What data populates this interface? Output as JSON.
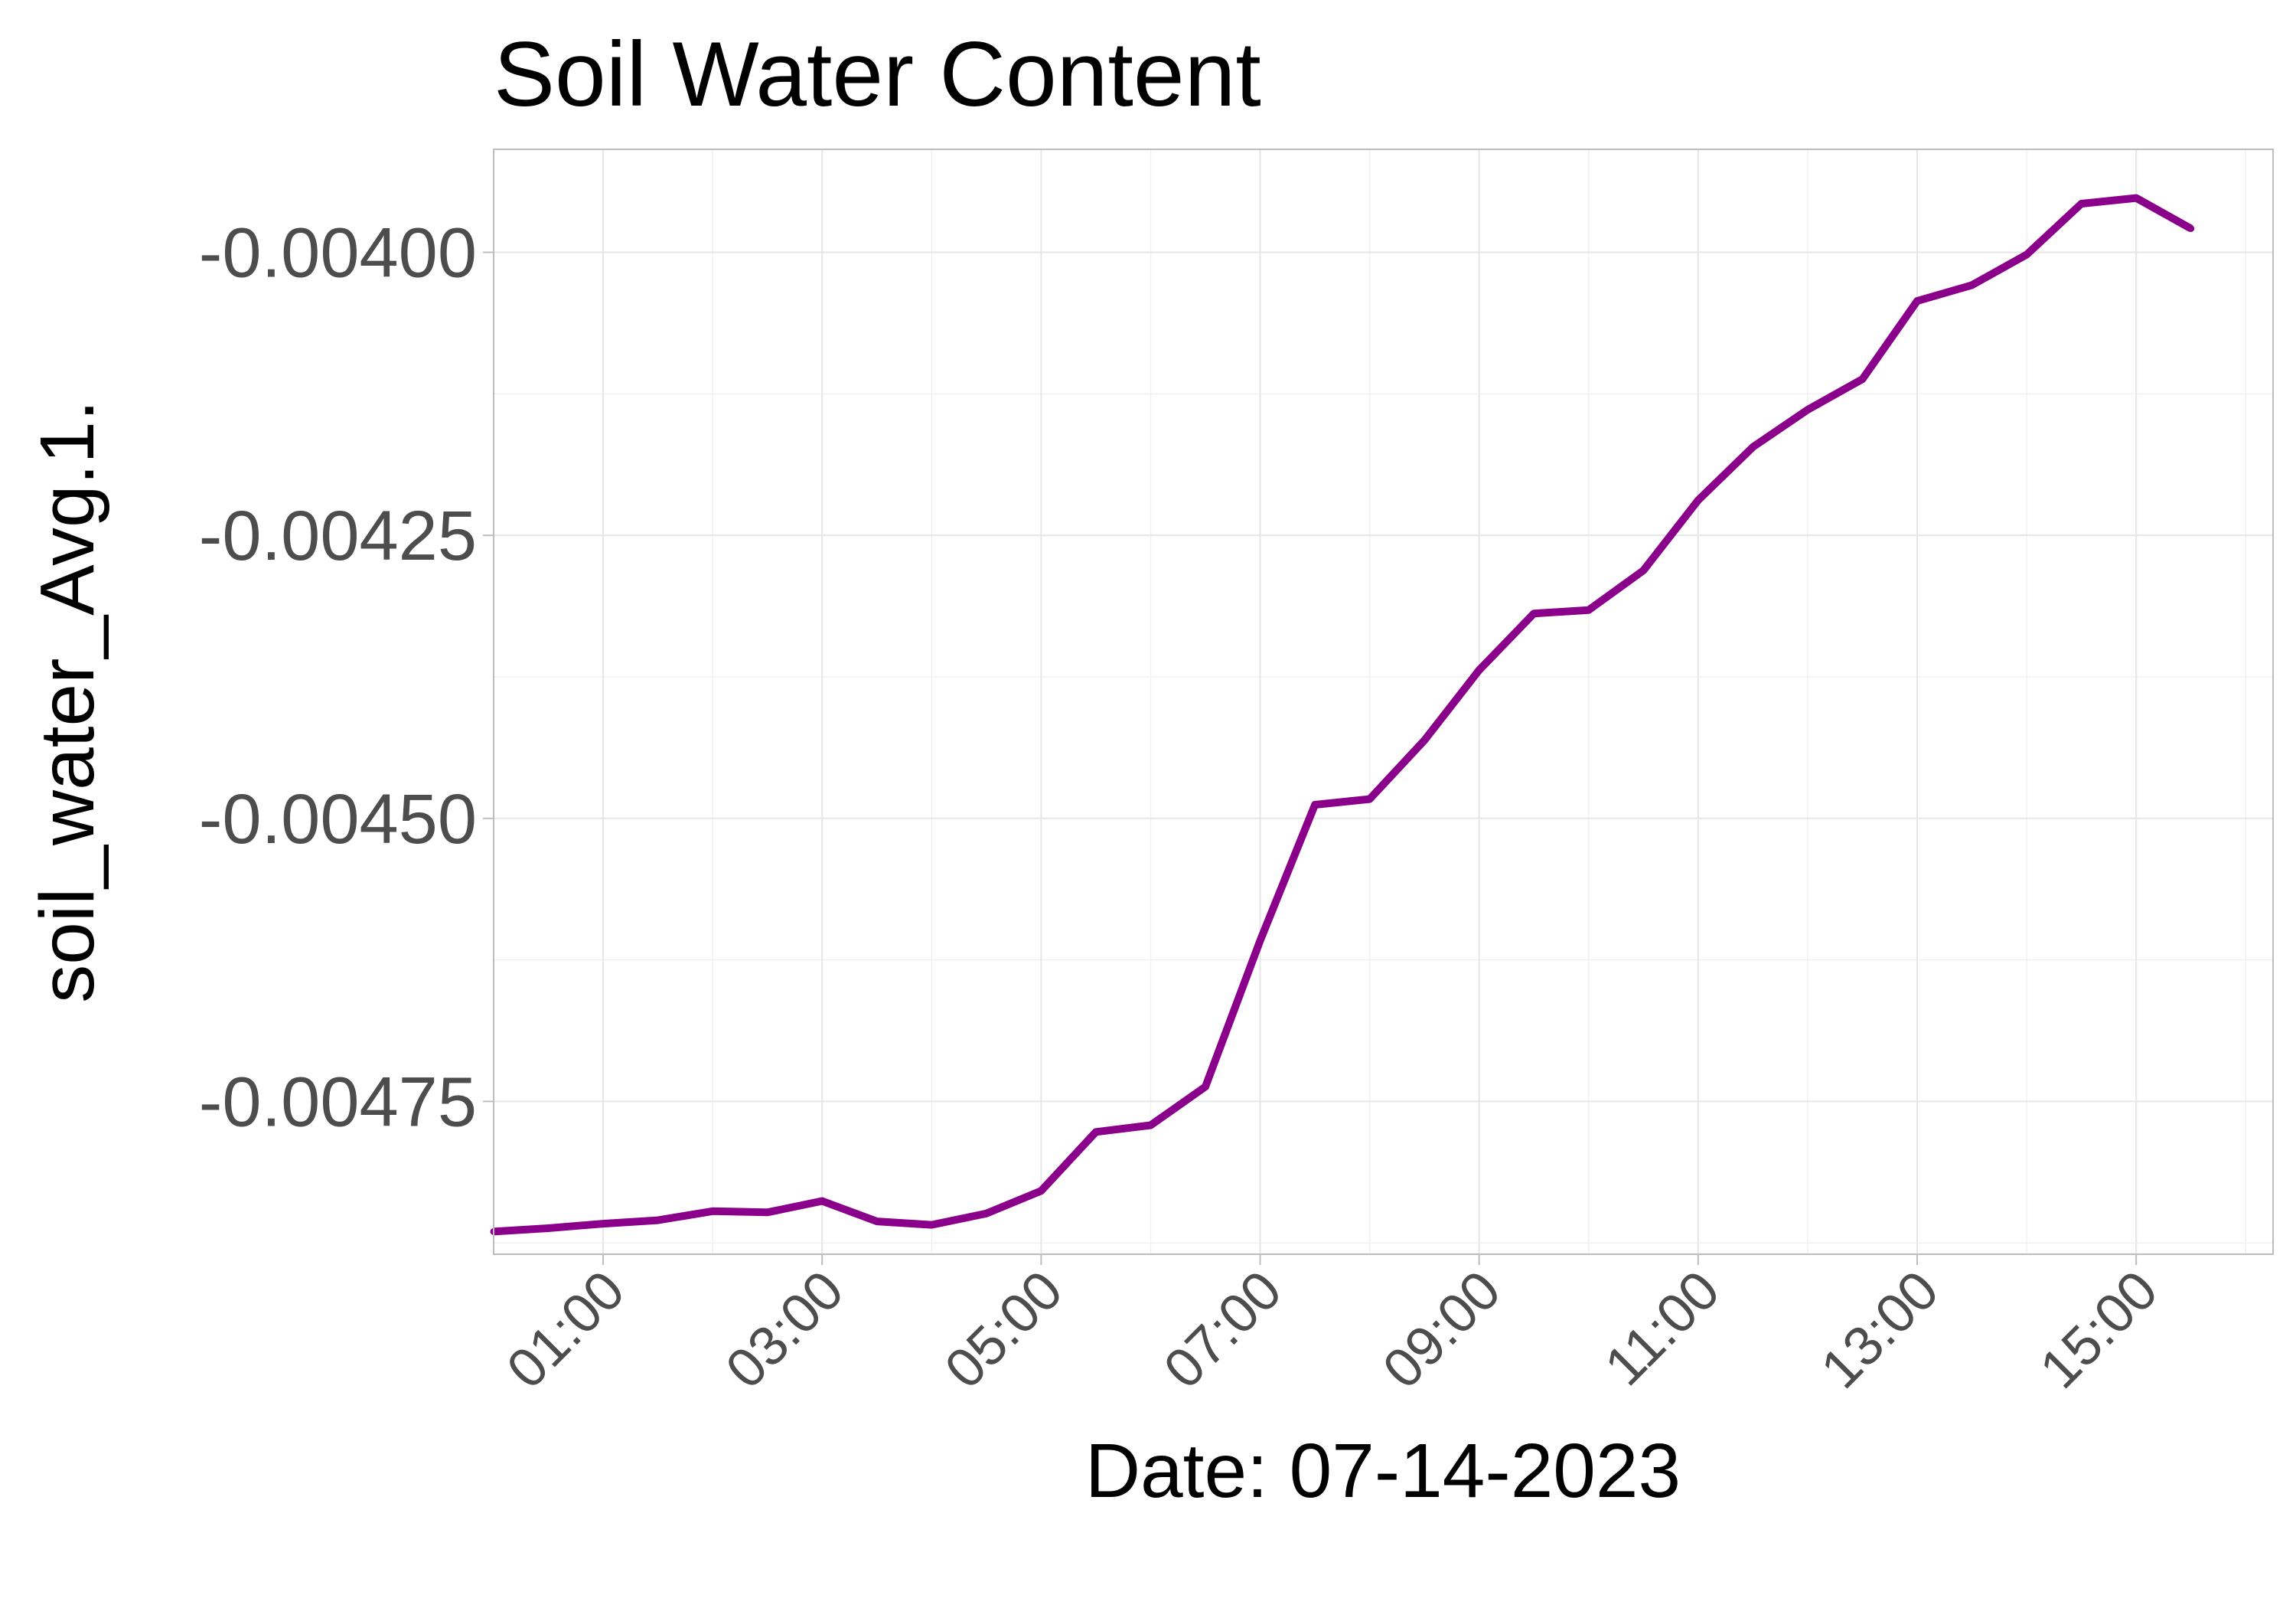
{
  "chart_data": {
    "type": "line",
    "title": "Soil Water Content",
    "xlabel": "Date: 07-14-2023",
    "ylabel": "soil_water_Avg.1.",
    "x_ticks": [
      "01:00",
      "03:00",
      "05:00",
      "07:00",
      "09:00",
      "11:00",
      "13:00",
      "15:00"
    ],
    "y_ticks": [
      "-0.00400",
      "-0.00425",
      "-0.00450",
      "-0.00475"
    ],
    "xlim": [
      "00:00",
      "16:15"
    ],
    "ylim": [
      -0.004885,
      -0.003909
    ],
    "grid": true,
    "line_color": "#8b008b",
    "series": [
      {
        "x": [
          "00:00",
          "00:30",
          "01:00",
          "01:30",
          "02:00",
          "02:30",
          "03:00",
          "03:30",
          "04:00",
          "04:30",
          "05:00",
          "05:30",
          "06:00",
          "06:30",
          "07:00",
          "07:30",
          "08:00",
          "08:30",
          "09:00",
          "09:30",
          "10:00",
          "10:30",
          "11:00",
          "11:30",
          "12:00",
          "12:30",
          "13:00",
          "13:30",
          "14:00",
          "14:30",
          "15:00",
          "15:30"
        ],
        "y": [
          -0.004865,
          -0.004862,
          -0.004858,
          -0.004855,
          -0.004847,
          -0.004848,
          -0.004838,
          -0.004856,
          -0.004859,
          -0.004849,
          -0.004829,
          -0.004777,
          -0.004771,
          -0.004737,
          -0.004608,
          -0.004488,
          -0.004483,
          -0.004431,
          -0.004369,
          -0.004319,
          -0.004316,
          -0.004281,
          -0.004219,
          -0.004172,
          -0.004139,
          -0.004112,
          -0.004043,
          -0.004029,
          -0.004002,
          -0.003957,
          -0.003952,
          -0.003979
        ]
      }
    ]
  }
}
